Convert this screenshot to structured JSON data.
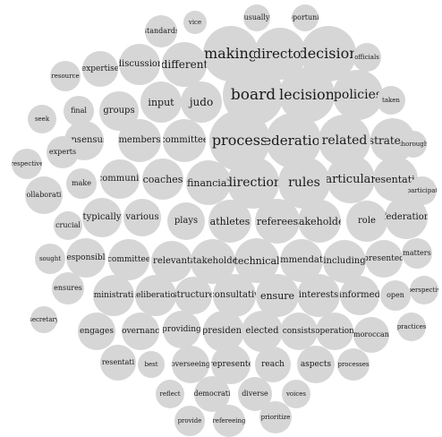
{
  "cloud": {
    "fill": "#d6d6d6",
    "text_color": "#1a1a1a",
    "words": [
      "vice",
      "usually",
      "pportunit",
      "standards",
      "making",
      "director",
      "decision",
      "officials",
      "different",
      "discussion",
      "expertise",
      "resource",
      "final",
      "groups",
      "input",
      "judo",
      "board",
      "lecision",
      "policies",
      "taken",
      "seek",
      "consensus",
      "members",
      "committee",
      "process",
      "federation",
      "related",
      "strategic",
      "thorough",
      "experts",
      "respective",
      "make",
      "communit",
      "coaches",
      "financial",
      "direction",
      "rules",
      "articular",
      "resentatio",
      "participat",
      "ollaborati",
      "crucial",
      "typically",
      "various",
      "plays",
      "athletes",
      "referees",
      "takeholde",
      "role",
      "federation",
      "sought",
      "esponsibl",
      "committee",
      "relevant",
      "stakeholde",
      "technical",
      "mmendat",
      "including",
      "presented",
      "matters",
      "ensures",
      "ministrati",
      "deliberation",
      "structure",
      "consultativ",
      "ensure",
      "interests",
      "informed",
      "open",
      "perspectiv",
      "secretary",
      "engages",
      "governance",
      "providing",
      "president",
      "elected",
      "consists",
      "operation",
      "moroccan",
      "practices",
      "resentati",
      "best",
      "overseeing",
      "represente",
      "reach",
      "aspects",
      "processes",
      "reflect",
      "democrati",
      "diverse",
      "voices",
      "provide",
      "refereeing",
      "prioritize"
    ]
  }
}
